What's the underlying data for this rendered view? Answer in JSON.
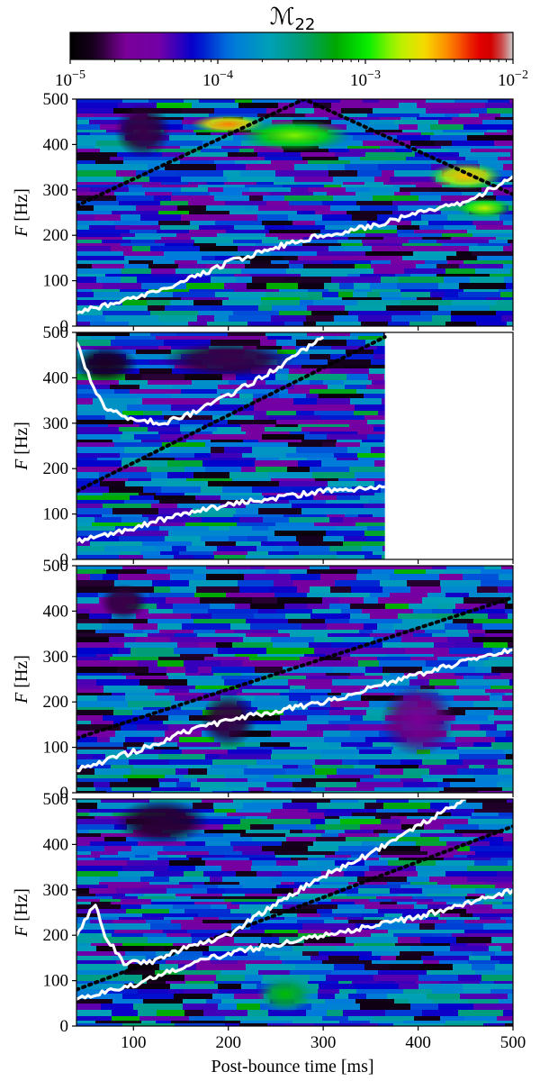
{
  "chart_data": {
    "type": "heatmap",
    "colorbar": {
      "label_main": "ℳ",
      "label_sub": "22",
      "scale": "log",
      "range": [
        1e-05,
        0.01
      ],
      "tick_labels": [
        {
          "base": "10",
          "exp": "−5"
        },
        {
          "base": "10",
          "exp": "−4"
        },
        {
          "base": "10",
          "exp": "−3"
        },
        {
          "base": "10",
          "exp": "−2"
        }
      ],
      "colormap": "nipy_spectral"
    },
    "xlabel": "Post-bounce time [ms]",
    "xlim": [
      40,
      500
    ],
    "xticks": [
      100,
      200,
      300,
      400,
      500
    ],
    "xtick_labels": [
      "100",
      "200",
      "300",
      "400",
      "500"
    ],
    "ylabel_main": "F",
    "ylabel_unit": " [Hz]",
    "ylim": [
      0,
      500
    ],
    "yticks": [
      0,
      100,
      200,
      300,
      400,
      500
    ],
    "ytick_labels": [
      "0",
      "100",
      "200",
      "300",
      "400",
      "500"
    ],
    "panels": [
      {
        "data_end_ms": 500,
        "dotted_line": [
          [
            40,
            265
          ],
          [
            280,
            500
          ],
          [
            500,
            290
          ]
        ],
        "white_curves": [
          [
            [
              40,
              30
            ],
            [
              100,
              60
            ],
            [
              150,
              95
            ],
            [
              200,
              140
            ],
            [
              250,
              175
            ],
            [
              300,
              200
            ],
            [
              350,
              220
            ],
            [
              400,
              250
            ],
            [
              450,
              270
            ],
            [
              500,
              330
            ]
          ]
        ],
        "heat_blobs": [
          {
            "x": 200,
            "y": 445,
            "rx": 40,
            "ry": 20,
            "level": 0.86
          },
          {
            "x": 270,
            "y": 420,
            "rx": 60,
            "ry": 35,
            "level": 0.72
          },
          {
            "x": 450,
            "y": 330,
            "rx": 40,
            "ry": 30,
            "level": 0.82
          },
          {
            "x": 470,
            "y": 260,
            "rx": 30,
            "ry": 22,
            "level": 0.76
          },
          {
            "x": 110,
            "y": 430,
            "rx": 30,
            "ry": 60,
            "level": 0.08
          }
        ]
      },
      {
        "data_end_ms": 365,
        "dotted_line": [
          [
            40,
            150
          ],
          [
            365,
            490
          ]
        ],
        "white_curves": [
          [
            [
              40,
              480
            ],
            [
              55,
              390
            ],
            [
              70,
              330
            ],
            [
              100,
              310
            ],
            [
              130,
              300
            ],
            [
              160,
              320
            ],
            [
              200,
              360
            ],
            [
              250,
              420
            ],
            [
              300,
              490
            ]
          ],
          [
            [
              40,
              40
            ],
            [
              100,
              70
            ],
            [
              150,
              100
            ],
            [
              200,
              120
            ],
            [
              250,
              135
            ],
            [
              300,
              150
            ],
            [
              365,
              160
            ]
          ]
        ],
        "heat_blobs": [
          {
            "x": 70,
            "y": 430,
            "rx": 35,
            "ry": 40,
            "level": 0.06
          },
          {
            "x": 200,
            "y": 440,
            "rx": 70,
            "ry": 40,
            "level": 0.08
          }
        ]
      },
      {
        "data_end_ms": 500,
        "dotted_line": [
          [
            40,
            120
          ],
          [
            500,
            430
          ]
        ],
        "white_curves": [
          [
            [
              40,
              50
            ],
            [
              100,
              90
            ],
            [
              150,
              130
            ],
            [
              200,
              160
            ],
            [
              250,
              180
            ],
            [
              300,
              200
            ],
            [
              350,
              230
            ],
            [
              400,
              260
            ],
            [
              450,
              290
            ],
            [
              500,
              315
            ]
          ]
        ],
        "heat_blobs": [
          {
            "x": 90,
            "y": 420,
            "rx": 25,
            "ry": 40,
            "level": 0.08
          },
          {
            "x": 200,
            "y": 160,
            "rx": 30,
            "ry": 60,
            "level": 0.08
          },
          {
            "x": 400,
            "y": 160,
            "rx": 40,
            "ry": 80,
            "level": 0.12
          }
        ]
      },
      {
        "data_end_ms": 500,
        "dotted_line": [
          [
            40,
            80
          ],
          [
            500,
            440
          ]
        ],
        "white_curves": [
          [
            [
              40,
              200
            ],
            [
              60,
              270
            ],
            [
              70,
              200
            ],
            [
              90,
              140
            ],
            [
              120,
              140
            ],
            [
              150,
              170
            ],
            [
              200,
              200
            ],
            [
              250,
              270
            ],
            [
              300,
              330
            ],
            [
              350,
              380
            ],
            [
              400,
              440
            ],
            [
              450,
              500
            ]
          ],
          [
            [
              40,
              60
            ],
            [
              100,
              90
            ],
            [
              150,
              130
            ],
            [
              200,
              160
            ],
            [
              250,
              180
            ],
            [
              300,
              200
            ],
            [
              350,
              220
            ],
            [
              400,
              240
            ],
            [
              450,
              270
            ],
            [
              500,
              300
            ]
          ]
        ],
        "heat_blobs": [
          {
            "x": 130,
            "y": 450,
            "rx": 50,
            "ry": 50,
            "level": 0.07
          },
          {
            "x": 260,
            "y": 70,
            "rx": 30,
            "ry": 40,
            "level": 0.62
          }
        ]
      }
    ]
  }
}
